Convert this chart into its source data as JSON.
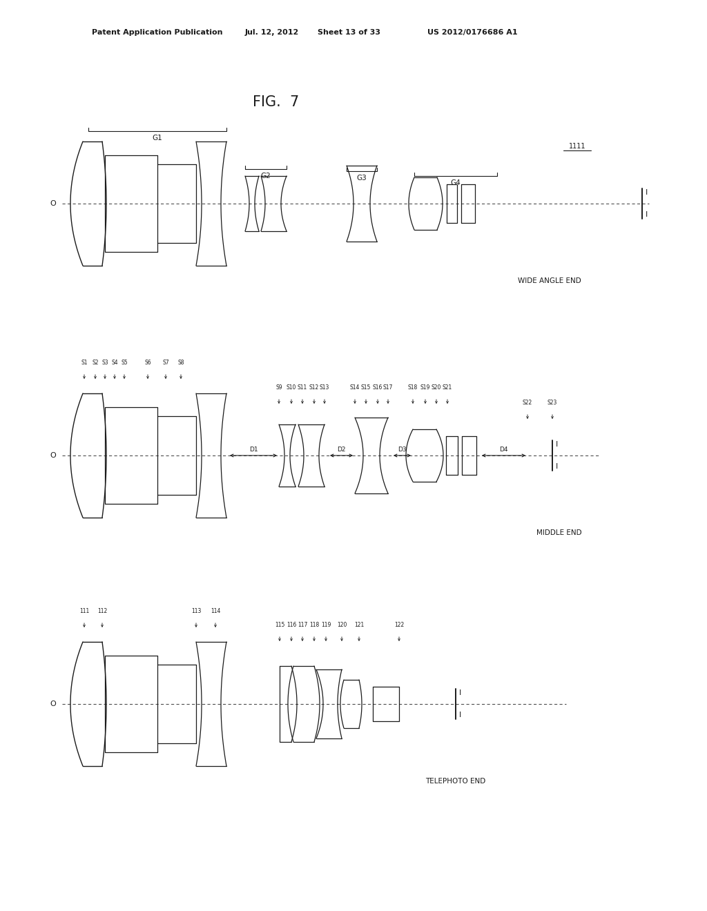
{
  "background": "#ffffff",
  "line_color": "#1a1a1a",
  "patent_text1": "Patent Application Publication",
  "patent_text2": "Jul. 12, 2012",
  "patent_text3": "Sheet 13 of 33",
  "patent_text4": "US 2012/0176686 A1",
  "fig_title": "FIG.  7",
  "label_wide": "WIDE ANGLE END",
  "label_middle": "MIDDLE END",
  "label_tele": "TELEPHOTO END",
  "sensor_label": "1111",
  "s_labels_g1": [
    "S1",
    "S2",
    "S3",
    "S4",
    "S5",
    "S6",
    "S7",
    "S8"
  ],
  "s_labels_g2m": [
    "S9",
    "S10",
    "S11",
    "S12",
    "S13"
  ],
  "s_labels_g3m": [
    "S14",
    "S15",
    "S16",
    "S17"
  ],
  "s_labels_g4m": [
    "S18",
    "S19",
    "S20",
    "S21"
  ],
  "s_labels_end": [
    "S22",
    "S23"
  ],
  "s_labels_tele": [
    "111",
    "112",
    "113",
    "114",
    "115",
    "116",
    "117",
    "118",
    "119",
    "120",
    "121",
    "122"
  ],
  "d_labels": [
    "D1",
    "D2",
    "D3",
    "D4"
  ]
}
